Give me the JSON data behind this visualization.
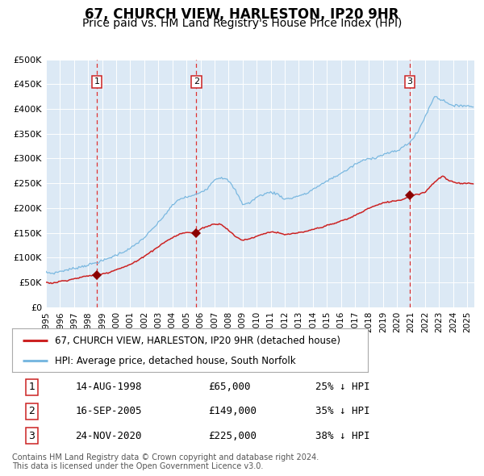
{
  "title": "67, CHURCH VIEW, HARLESTON, IP20 9HR",
  "subtitle": "Price paid vs. HM Land Registry's House Price Index (HPI)",
  "ylim": [
    0,
    500000
  ],
  "yticks": [
    0,
    50000,
    100000,
    150000,
    200000,
    250000,
    300000,
    350000,
    400000,
    450000,
    500000
  ],
  "ytick_labels": [
    "£0",
    "£50K",
    "£100K",
    "£150K",
    "£200K",
    "£250K",
    "£300K",
    "£350K",
    "£400K",
    "£450K",
    "£500K"
  ],
  "background_color": "#dce9f5",
  "grid_color": "#ffffff",
  "hpi_line_color": "#7ab8e0",
  "price_line_color": "#cc2222",
  "sale_marker_color": "#8b0000",
  "vline_color": "#dd3333",
  "sales": [
    {
      "date_num": 1998.62,
      "price": 65000,
      "label": "1"
    },
    {
      "date_num": 2005.71,
      "price": 149000,
      "label": "2"
    },
    {
      "date_num": 2020.9,
      "price": 225000,
      "label": "3"
    }
  ],
  "sale_dates_str": [
    "14-AUG-1998",
    "16-SEP-2005",
    "24-NOV-2020"
  ],
  "sale_prices_str": [
    "£65,000",
    "£149,000",
    "£225,000"
  ],
  "sale_pct_str": [
    "25% ↓ HPI",
    "35% ↓ HPI",
    "38% ↓ HPI"
  ],
  "legend_label_red": "67, CHURCH VIEW, HARLESTON, IP20 9HR (detached house)",
  "legend_label_blue": "HPI: Average price, detached house, South Norfolk",
  "footer": "Contains HM Land Registry data © Crown copyright and database right 2024.\nThis data is licensed under the Open Government Licence v3.0.",
  "title_fontsize": 12,
  "subtitle_fontsize": 10,
  "tick_fontsize": 8,
  "xstart": 1995.0,
  "xend": 2025.5
}
